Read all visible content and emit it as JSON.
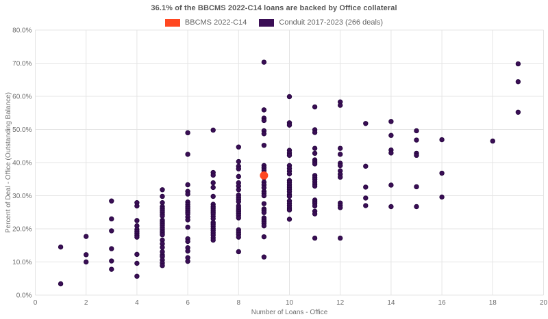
{
  "header": {
    "title": "36.1% of the BBCMS 2022-C14 loans are backed by Office collateral"
  },
  "legend": {
    "items": [
      {
        "label": "BBCMS 2022-C14",
        "color": "#ff4720"
      },
      {
        "label": "Conduit 2017-2023 (266 deals)",
        "color": "#3a0e55"
      }
    ]
  },
  "chart_data": {
    "type": "scatter",
    "title": "36.1% of the BBCMS 2022-C14 loans are backed by Office collateral",
    "xlabel": "Number of Loans - Office",
    "ylabel": "Percent of Deal - Office (Outstanding Balance)",
    "xlim": [
      0,
      20
    ],
    "ylim": [
      0,
      80
    ],
    "grid": true,
    "legend_position": "top-center",
    "xticks": {
      "values": [
        0,
        2,
        4,
        6,
        8,
        10,
        12,
        14,
        16,
        18,
        20
      ],
      "labels": [
        "0",
        "2",
        "4",
        "6",
        "8",
        "10",
        "12",
        "14",
        "16",
        "18",
        "20"
      ]
    },
    "yticks": {
      "values": [
        0,
        10,
        20,
        30,
        40,
        50,
        60,
        70,
        80
      ],
      "labels": [
        "0.0%",
        "10.0%",
        "20.0%",
        "30.0%",
        "40.0%",
        "50.0%",
        "60.0%",
        "70.0%",
        "80.0%"
      ]
    },
    "series": [
      {
        "name": "BBCMS 2022-C14",
        "color": "#ff4720",
        "edge_color": "#ff4720",
        "marker_radius": 5.5,
        "points": [
          [
            9,
            36.1
          ]
        ]
      },
      {
        "name": "Conduit 2017-2023 (266 deals)",
        "color": "#3a0e55",
        "edge_color": "#260640",
        "marker_radius": 3.2,
        "points": [
          [
            1,
            14.5
          ],
          [
            1,
            3.4
          ],
          [
            2,
            17.7
          ],
          [
            2,
            12.2
          ],
          [
            2,
            10.0
          ],
          [
            3,
            28.4
          ],
          [
            3,
            23.0
          ],
          [
            3,
            19.4
          ],
          [
            3,
            14.0
          ],
          [
            3,
            10.3
          ],
          [
            3,
            7.8
          ],
          [
            4,
            27.9
          ],
          [
            4,
            26.9
          ],
          [
            4,
            22.5
          ],
          [
            4,
            20.9
          ],
          [
            4,
            19.8
          ],
          [
            4,
            19.2
          ],
          [
            4,
            18.6
          ],
          [
            4,
            18.0
          ],
          [
            4,
            17.5
          ],
          [
            4,
            12.3
          ],
          [
            4,
            9.6
          ],
          [
            4,
            5.7
          ],
          [
            5,
            31.8
          ],
          [
            5,
            29.8
          ],
          [
            5,
            27.9
          ],
          [
            5,
            26.7
          ],
          [
            5,
            26.1
          ],
          [
            5,
            25.6
          ],
          [
            5,
            25.0
          ],
          [
            5,
            24.4
          ],
          [
            5,
            23.9
          ],
          [
            5,
            22.6
          ],
          [
            5,
            22.1
          ],
          [
            5,
            21.5
          ],
          [
            5,
            21.0
          ],
          [
            5,
            20.4
          ],
          [
            5,
            19.9
          ],
          [
            5,
            19.3
          ],
          [
            5,
            18.8
          ],
          [
            5,
            18.2
          ],
          [
            5,
            16.6
          ],
          [
            5,
            15.5
          ],
          [
            5,
            14.4
          ],
          [
            5,
            13.1
          ],
          [
            5,
            12.1
          ],
          [
            5,
            11.6
          ],
          [
            5,
            10.6
          ],
          [
            5,
            9.7
          ],
          [
            5,
            8.9
          ],
          [
            6,
            49.0
          ],
          [
            6,
            42.5
          ],
          [
            6,
            33.3
          ],
          [
            6,
            31.3
          ],
          [
            6,
            30.5
          ],
          [
            6,
            28.1
          ],
          [
            6,
            27.4
          ],
          [
            6,
            26.7
          ],
          [
            6,
            26.2
          ],
          [
            6,
            25.6
          ],
          [
            6,
            25.0
          ],
          [
            6,
            24.5
          ],
          [
            6,
            23.6
          ],
          [
            6,
            22.7
          ],
          [
            6,
            20.5
          ],
          [
            6,
            17.0
          ],
          [
            6,
            16.2
          ],
          [
            6,
            14.3
          ],
          [
            6,
            13.3
          ],
          [
            6,
            11.3
          ],
          [
            6,
            10.2
          ],
          [
            7,
            49.8
          ],
          [
            7,
            37.0
          ],
          [
            7,
            36.2
          ],
          [
            7,
            33.9
          ],
          [
            7,
            32.5
          ],
          [
            7,
            29.8
          ],
          [
            7,
            27.4
          ],
          [
            7,
            26.7
          ],
          [
            7,
            26.2
          ],
          [
            7,
            25.6
          ],
          [
            7,
            25.0
          ],
          [
            7,
            24.5
          ],
          [
            7,
            23.8
          ],
          [
            7,
            23.1
          ],
          [
            7,
            21.9
          ],
          [
            7,
            21.4
          ],
          [
            7,
            20.8
          ],
          [
            7,
            20.1
          ],
          [
            7,
            19.5
          ],
          [
            7,
            18.8
          ],
          [
            7,
            18.1
          ],
          [
            7,
            17.3
          ],
          [
            7,
            16.6
          ],
          [
            8,
            44.7
          ],
          [
            8,
            40.3
          ],
          [
            8,
            38.9
          ],
          [
            8,
            38.1
          ],
          [
            8,
            35.8
          ],
          [
            8,
            33.9
          ],
          [
            8,
            32.9
          ],
          [
            8,
            31.8
          ],
          [
            8,
            30.2
          ],
          [
            8,
            29.5
          ],
          [
            8,
            28.9
          ],
          [
            8,
            28.2
          ],
          [
            8,
            26.9
          ],
          [
            8,
            26.3
          ],
          [
            8,
            25.7
          ],
          [
            8,
            25.2
          ],
          [
            8,
            24.6
          ],
          [
            8,
            24.0
          ],
          [
            8,
            23.3
          ],
          [
            8,
            19.7
          ],
          [
            8,
            19.0
          ],
          [
            8,
            18.3
          ],
          [
            8,
            17.5
          ],
          [
            8,
            13.1
          ],
          [
            9,
            70.3
          ],
          [
            9,
            55.9
          ],
          [
            9,
            53.4
          ],
          [
            9,
            52.7
          ],
          [
            9,
            49.6
          ],
          [
            9,
            48.7
          ],
          [
            9,
            45.2
          ],
          [
            9,
            39.1
          ],
          [
            9,
            38.4
          ],
          [
            9,
            37.7
          ],
          [
            9,
            37.0
          ],
          [
            9,
            36.2
          ],
          [
            9,
            35.4
          ],
          [
            9,
            34.1
          ],
          [
            9,
            33.3
          ],
          [
            9,
            32.4
          ],
          [
            9,
            31.3
          ],
          [
            9,
            30.7
          ],
          [
            9,
            30.0
          ],
          [
            9,
            27.6
          ],
          [
            9,
            26.0
          ],
          [
            9,
            25.5
          ],
          [
            9,
            24.9
          ],
          [
            9,
            23.3
          ],
          [
            9,
            22.7
          ],
          [
            9,
            22.2
          ],
          [
            9,
            21.6
          ],
          [
            9,
            20.9
          ],
          [
            9,
            17.6
          ],
          [
            9,
            11.5
          ],
          [
            10,
            59.9
          ],
          [
            10,
            52.0
          ],
          [
            10,
            51.3
          ],
          [
            10,
            43.7
          ],
          [
            10,
            42.9
          ],
          [
            10,
            42.2
          ],
          [
            10,
            39.1
          ],
          [
            10,
            38.2
          ],
          [
            10,
            37.4
          ],
          [
            10,
            36.6
          ],
          [
            10,
            34.6
          ],
          [
            10,
            34.0
          ],
          [
            10,
            33.3
          ],
          [
            10,
            32.6
          ],
          [
            10,
            31.9
          ],
          [
            10,
            31.2
          ],
          [
            10,
            30.4
          ],
          [
            10,
            29.8
          ],
          [
            10,
            28.4
          ],
          [
            10,
            27.7
          ],
          [
            10,
            27.0
          ],
          [
            10,
            26.3
          ],
          [
            10,
            25.7
          ],
          [
            10,
            22.9
          ],
          [
            11,
            56.8
          ],
          [
            11,
            49.9
          ],
          [
            11,
            49.1
          ],
          [
            11,
            44.3
          ],
          [
            11,
            42.8
          ],
          [
            11,
            40.8
          ],
          [
            11,
            40.2
          ],
          [
            11,
            39.6
          ],
          [
            11,
            36.1
          ],
          [
            11,
            35.5
          ],
          [
            11,
            34.9
          ],
          [
            11,
            34.2
          ],
          [
            11,
            33.5
          ],
          [
            11,
            32.9
          ],
          [
            11,
            28.7
          ],
          [
            11,
            28.1
          ],
          [
            11,
            27.6
          ],
          [
            11,
            26.9
          ],
          [
            11,
            25.3
          ],
          [
            11,
            24.5
          ],
          [
            11,
            17.2
          ],
          [
            12,
            58.3
          ],
          [
            12,
            57.3
          ],
          [
            12,
            44.3
          ],
          [
            12,
            42.5
          ],
          [
            12,
            39.8
          ],
          [
            12,
            39.1
          ],
          [
            12,
            37.5
          ],
          [
            12,
            36.5
          ],
          [
            12,
            35.6
          ],
          [
            12,
            27.8
          ],
          [
            12,
            27.1
          ],
          [
            12,
            26.4
          ],
          [
            12,
            17.2
          ],
          [
            13,
            51.8
          ],
          [
            13,
            38.9
          ],
          [
            13,
            32.6
          ],
          [
            13,
            29.3
          ],
          [
            13,
            27.0
          ],
          [
            14,
            52.4
          ],
          [
            14,
            48.2
          ],
          [
            14,
            43.8
          ],
          [
            14,
            42.9
          ],
          [
            14,
            33.2
          ],
          [
            14,
            26.7
          ],
          [
            15,
            49.6
          ],
          [
            15,
            46.8
          ],
          [
            15,
            42.8
          ],
          [
            15,
            42.2
          ],
          [
            15,
            32.7
          ],
          [
            15,
            26.7
          ],
          [
            16,
            46.9
          ],
          [
            16,
            36.8
          ],
          [
            16,
            29.6
          ],
          [
            18,
            46.5
          ],
          [
            19,
            69.8
          ],
          [
            19,
            64.4
          ],
          [
            19,
            55.2
          ]
        ]
      }
    ]
  },
  "style": {
    "grid_color": "#e4e4e4",
    "tick_color": "#6e6e6e",
    "title_color": "#595959"
  }
}
